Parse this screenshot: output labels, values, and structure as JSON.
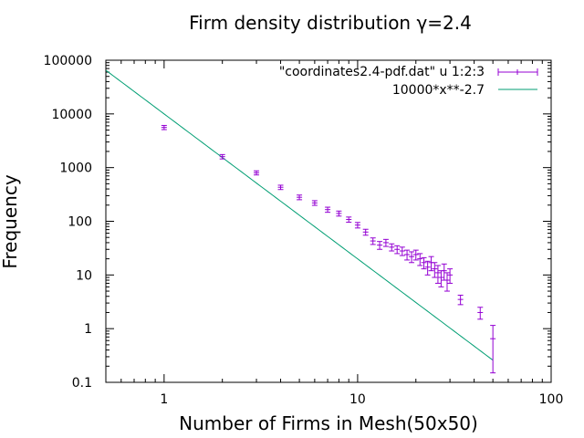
{
  "chart_data": {
    "type": "scatter",
    "title": "Firm density distribution γ=2.4",
    "xlabel": "Number of Firms in Mesh(50x50)",
    "ylabel": "Frequency",
    "xscale": "log",
    "yscale": "log",
    "xlim": [
      0.5,
      100
    ],
    "ylim": [
      0.1,
      100000
    ],
    "xticks": [
      {
        "value": 1,
        "label": "1"
      },
      {
        "value": 10,
        "label": "10"
      },
      {
        "value": 100,
        "label": "100"
      }
    ],
    "yticks": [
      {
        "value": 0.1,
        "label": "0.1"
      },
      {
        "value": 1,
        "label": "1"
      },
      {
        "value": 10,
        "label": "10"
      },
      {
        "value": 100,
        "label": "100"
      },
      {
        "value": 1000,
        "label": "1000"
      },
      {
        "value": 10000,
        "label": "10000"
      },
      {
        "value": 100000,
        "label": "100000"
      }
    ],
    "grid": false,
    "legend": "top-right",
    "series": [
      {
        "name": "\"coordinates2.4-pdf.dat\" u 1:2:3",
        "kind": "errorbars",
        "color": "#9400d3",
        "points": [
          {
            "x": 1,
            "y": 5600,
            "err": 500
          },
          {
            "x": 2,
            "y": 1600,
            "err": 150
          },
          {
            "x": 3,
            "y": 800,
            "err": 70
          },
          {
            "x": 4,
            "y": 430,
            "err": 40
          },
          {
            "x": 5,
            "y": 280,
            "err": 28
          },
          {
            "x": 6,
            "y": 220,
            "err": 22
          },
          {
            "x": 7,
            "y": 165,
            "err": 18
          },
          {
            "x": 8,
            "y": 140,
            "err": 15
          },
          {
            "x": 9,
            "y": 108,
            "err": 12
          },
          {
            "x": 10,
            "y": 85,
            "err": 10
          },
          {
            "x": 11,
            "y": 63,
            "err": 8
          },
          {
            "x": 12,
            "y": 43,
            "err": 6
          },
          {
            "x": 13,
            "y": 36,
            "err": 6
          },
          {
            "x": 14,
            "y": 40,
            "err": 6
          },
          {
            "x": 15,
            "y": 33,
            "err": 5
          },
          {
            "x": 16,
            "y": 30,
            "err": 5
          },
          {
            "x": 17,
            "y": 28,
            "err": 5
          },
          {
            "x": 18,
            "y": 24,
            "err": 5
          },
          {
            "x": 19,
            "y": 22,
            "err": 5
          },
          {
            "x": 20,
            "y": 24,
            "err": 5
          },
          {
            "x": 21,
            "y": 20,
            "err": 5
          },
          {
            "x": 22,
            "y": 17,
            "err": 4
          },
          {
            "x": 23,
            "y": 14,
            "err": 4
          },
          {
            "x": 24,
            "y": 17,
            "err": 5
          },
          {
            "x": 25,
            "y": 13,
            "err": 4
          },
          {
            "x": 26,
            "y": 11,
            "err": 4
          },
          {
            "x": 27,
            "y": 9,
            "err": 3
          },
          {
            "x": 28,
            "y": 12,
            "err": 4
          },
          {
            "x": 29,
            "y": 8,
            "err": 3
          },
          {
            "x": 30,
            "y": 10,
            "err": 3
          },
          {
            "x": 34,
            "y": 3.5,
            "err": 0.7
          },
          {
            "x": 43,
            "y": 2,
            "err": 0.5
          },
          {
            "x": 50,
            "y": 0.65,
            "err": 0.5
          }
        ]
      },
      {
        "name": "10000*x**-2.7",
        "kind": "function",
        "color": "#009e73",
        "coefficient": 10000,
        "exponent": -2.7,
        "domain": [
          0.5,
          50
        ]
      }
    ]
  }
}
